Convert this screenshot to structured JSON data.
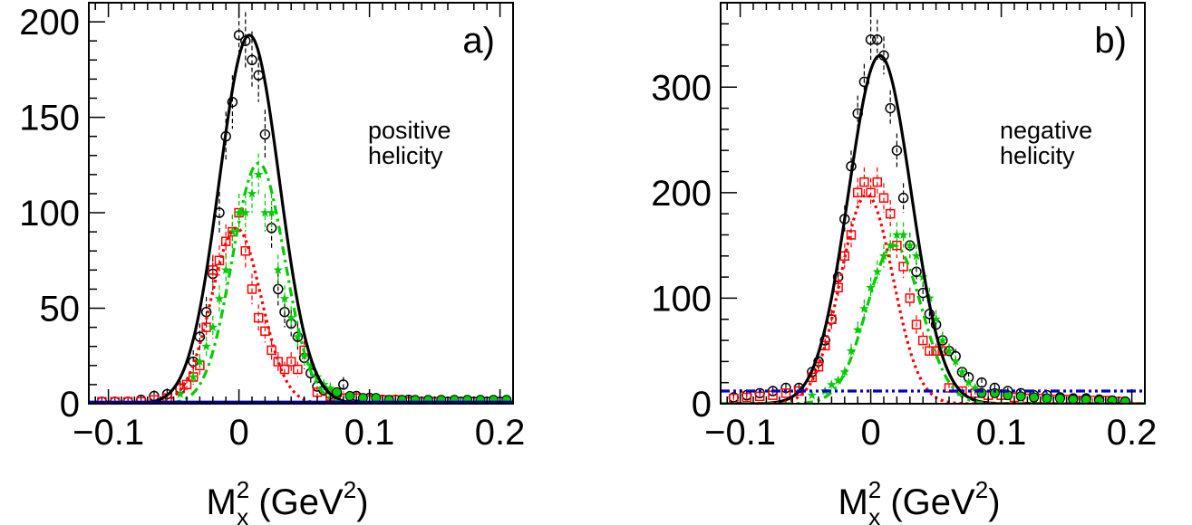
{
  "chart_data": [
    {
      "type": "scatter",
      "panel_label": "a)",
      "annotation": [
        "positive",
        "helicity"
      ],
      "x_axis": {
        "label_main": "M",
        "label_sup": "2",
        "label_sub": "x",
        "label_unit_open": " (GeV",
        "label_unit_sup": "2",
        "label_unit_close": ")",
        "range": [
          -0.115,
          0.21
        ],
        "ticks": [
          -0.1,
          0,
          0.1,
          0.2
        ],
        "tick_labels": [
          "−0.1",
          "0",
          "0.1",
          "0.2"
        ]
      },
      "y_axis": {
        "range": [
          0,
          210
        ],
        "ticks": [
          0,
          50,
          100,
          150,
          200
        ],
        "tick_labels": [
          "0",
          "50",
          "100",
          "150",
          "200"
        ]
      },
      "grid": false,
      "series": [
        {
          "kind": "points",
          "marker": "circle",
          "color": "#000000",
          "x": [
            -0.105,
            -0.095,
            -0.085,
            -0.075,
            -0.065,
            -0.055,
            -0.045,
            -0.035,
            -0.03,
            -0.025,
            -0.02,
            -0.015,
            -0.01,
            -0.005,
            0,
            0.005,
            0.01,
            0.015,
            0.02,
            0.025,
            0.03,
            0.035,
            0.04,
            0.045,
            0.05,
            0.055,
            0.06,
            0.065,
            0.07,
            0.075,
            0.08,
            0.09,
            0.1,
            0.11,
            0.12,
            0.13,
            0.14,
            0.15,
            0.16,
            0.17,
            0.18,
            0.19,
            0.2
          ],
          "y": [
            1,
            1,
            1,
            2,
            4,
            5,
            8,
            22,
            35,
            48,
            68,
            100,
            140,
            158,
            193,
            190,
            180,
            172,
            141,
            92,
            60,
            48,
            42,
            35,
            24,
            16,
            9,
            7,
            5,
            5,
            10,
            4,
            3,
            2,
            2,
            2,
            1,
            1,
            1,
            1,
            1,
            1,
            1
          ],
          "err": [
            2,
            2,
            2,
            2,
            3,
            3,
            4,
            6,
            7,
            8,
            9,
            11,
            13,
            14,
            15,
            15,
            15,
            14,
            13,
            11,
            9,
            8,
            7,
            7,
            6,
            5,
            4,
            3,
            3,
            3,
            4,
            2,
            2,
            2,
            2,
            2,
            2,
            2,
            2,
            2,
            2,
            2,
            2
          ]
        },
        {
          "kind": "points",
          "marker": "square",
          "color": "#ff0000",
          "x": [
            -0.105,
            -0.095,
            -0.085,
            -0.075,
            -0.065,
            -0.055,
            -0.045,
            -0.04,
            -0.035,
            -0.03,
            -0.025,
            -0.02,
            -0.015,
            -0.01,
            -0.005,
            0,
            0.005,
            0.01,
            0.015,
            0.02,
            0.025,
            0.03,
            0.035,
            0.04,
            0.045,
            0.05,
            0.06,
            0.07,
            0.08,
            0.09,
            0.1,
            0.11,
            0.12,
            0.13,
            0.14,
            0.15
          ],
          "y": [
            1,
            1,
            1,
            1,
            2,
            3,
            8,
            10,
            14,
            20,
            40,
            70,
            75,
            85,
            90,
            100,
            80,
            60,
            45,
            38,
            28,
            22,
            18,
            22,
            18,
            28,
            6,
            4,
            3,
            3,
            2,
            2,
            2,
            1,
            1,
            1
          ],
          "err": [
            1,
            1,
            1,
            1,
            2,
            2,
            3,
            3,
            4,
            5,
            6,
            8,
            8,
            9,
            9,
            10,
            9,
            8,
            7,
            6,
            5,
            5,
            4,
            5,
            4,
            5,
            3,
            2,
            2,
            2,
            2,
            2,
            2,
            2,
            2,
            2
          ]
        },
        {
          "kind": "points",
          "marker": "star",
          "color": "#00cc00",
          "x": [
            -0.045,
            -0.035,
            -0.03,
            -0.025,
            -0.02,
            -0.015,
            -0.01,
            -0.005,
            0,
            0.005,
            0.01,
            0.015,
            0.02,
            0.025,
            0.03,
            0.035,
            0.04,
            0.045,
            0.05,
            0.055,
            0.06,
            0.065,
            0.07
          ],
          "y": [
            5,
            14,
            22,
            30,
            40,
            55,
            70,
            90,
            100,
            100,
            110,
            120,
            100,
            100,
            70,
            55,
            45,
            35,
            25,
            20,
            14,
            10,
            8
          ],
          "err": [
            2,
            3,
            4,
            5,
            6,
            7,
            8,
            9,
            10,
            10,
            10,
            11,
            10,
            10,
            8,
            7,
            6,
            5,
            5,
            4,
            3,
            3,
            3
          ]
        },
        {
          "kind": "points",
          "marker": "circle-filled",
          "color": "#00cc00",
          "x": [
            0.075,
            0.085,
            0.095,
            0.105,
            0.115,
            0.125,
            0.135,
            0.145,
            0.155,
            0.165,
            0.175,
            0.185,
            0.195,
            0.205
          ],
          "y": [
            6,
            4,
            3,
            3,
            2,
            2,
            2,
            2,
            2,
            2,
            2,
            2,
            2,
            2
          ],
          "err": [
            2,
            2,
            2,
            2,
            1,
            1,
            1,
            1,
            1,
            1,
            1,
            1,
            1,
            1
          ]
        },
        {
          "kind": "curve",
          "style": "solid",
          "color": "#000000",
          "amplitude": 193,
          "mean": 0.008,
          "sigma": 0.023,
          "baseline": 0
        },
        {
          "kind": "curve",
          "style": "dotted",
          "color": "#ff0000",
          "amplitude": 92,
          "mean": -0.002,
          "sigma": 0.019,
          "baseline": 0
        },
        {
          "kind": "curve",
          "style": "dashdot",
          "color": "#00cc00",
          "amplitude": 126,
          "mean": 0.015,
          "sigma": 0.02,
          "baseline": 0
        },
        {
          "kind": "curve",
          "style": "solid",
          "color": "#0000aa",
          "amplitude": 0,
          "mean": 0,
          "sigma": 1,
          "baseline": 1
        }
      ]
    },
    {
      "type": "scatter",
      "panel_label": "b)",
      "annotation": [
        "negative",
        "helicity"
      ],
      "x_axis": {
        "label_main": "M",
        "label_sup": "2",
        "label_sub": "x",
        "label_unit_open": " (GeV",
        "label_unit_sup": "2",
        "label_unit_close": ")",
        "range": [
          -0.115,
          0.21
        ],
        "ticks": [
          -0.1,
          0,
          0.1,
          0.2
        ],
        "tick_labels": [
          "−0.1",
          "0",
          "0.1",
          "0.2"
        ]
      },
      "y_axis": {
        "range": [
          0,
          380
        ],
        "ticks": [
          0,
          100,
          200,
          300
        ],
        "tick_labels": [
          "0",
          "100",
          "200",
          "300"
        ]
      },
      "grid": false,
      "series": [
        {
          "kind": "points",
          "marker": "circle",
          "color": "#000000",
          "x": [
            -0.105,
            -0.095,
            -0.085,
            -0.075,
            -0.065,
            -0.055,
            -0.045,
            -0.04,
            -0.035,
            -0.03,
            -0.025,
            -0.02,
            -0.015,
            -0.01,
            -0.005,
            0,
            0.005,
            0.01,
            0.015,
            0.02,
            0.025,
            0.03,
            0.035,
            0.04,
            0.045,
            0.05,
            0.055,
            0.06,
            0.065,
            0.07,
            0.075,
            0.085,
            0.095,
            0.105,
            0.115,
            0.125,
            0.135,
            0.145,
            0.155,
            0.165,
            0.175,
            0.185,
            0.195
          ],
          "y": [
            6,
            8,
            10,
            12,
            15,
            15,
            30,
            40,
            60,
            80,
            120,
            175,
            225,
            275,
            305,
            345,
            345,
            330,
            280,
            240,
            195,
            150,
            125,
            105,
            85,
            75,
            60,
            50,
            45,
            30,
            25,
            20,
            15,
            12,
            10,
            8,
            8,
            6,
            5,
            5,
            4,
            3,
            2
          ],
          "err": [
            3,
            3,
            3,
            4,
            4,
            4,
            5,
            6,
            8,
            9,
            11,
            13,
            15,
            17,
            17,
            19,
            19,
            18,
            17,
            16,
            14,
            12,
            11,
            10,
            9,
            9,
            8,
            7,
            7,
            5,
            5,
            4,
            4,
            3,
            3,
            3,
            3,
            2,
            2,
            2,
            2,
            2,
            2
          ]
        },
        {
          "kind": "points",
          "marker": "square",
          "color": "#ff0000",
          "x": [
            -0.105,
            -0.095,
            -0.085,
            -0.075,
            -0.065,
            -0.055,
            -0.045,
            -0.04,
            -0.035,
            -0.03,
            -0.025,
            -0.02,
            -0.015,
            -0.01,
            -0.005,
            0,
            0.005,
            0.01,
            0.015,
            0.02,
            0.025,
            0.03,
            0.035,
            0.04,
            0.045,
            0.05,
            0.055,
            0.06,
            0.07,
            0.08,
            0.09,
            0.1,
            0.11,
            0.12,
            0.13,
            0.14,
            0.15,
            0.16,
            0.17,
            0.18,
            0.19
          ],
          "y": [
            5,
            6,
            7,
            8,
            10,
            12,
            25,
            35,
            55,
            80,
            110,
            140,
            160,
            200,
            210,
            200,
            210,
            195,
            180,
            150,
            130,
            100,
            75,
            60,
            50,
            50,
            50,
            15,
            12,
            10,
            8,
            8,
            6,
            5,
            5,
            4,
            4,
            3,
            3,
            3,
            2
          ],
          "err": [
            2,
            2,
            3,
            3,
            3,
            3,
            5,
            6,
            7,
            9,
            10,
            12,
            13,
            14,
            14,
            14,
            14,
            14,
            13,
            12,
            11,
            10,
            9,
            8,
            7,
            7,
            7,
            4,
            3,
            3,
            3,
            3,
            2,
            2,
            2,
            2,
            2,
            2,
            2,
            2,
            2
          ]
        },
        {
          "kind": "points",
          "marker": "star",
          "color": "#00cc00",
          "x": [
            -0.045,
            -0.035,
            -0.03,
            -0.025,
            -0.02,
            -0.015,
            -0.01,
            -0.005,
            0,
            0.005,
            0.01,
            0.015,
            0.02,
            0.025,
            0.03,
            0.035,
            0.04,
            0.045,
            0.05,
            0.055,
            0.06,
            0.065,
            0.07,
            0.075,
            0.08
          ],
          "y": [
            8,
            12,
            18,
            22,
            30,
            50,
            70,
            90,
            110,
            125,
            140,
            150,
            160,
            160,
            150,
            140,
            120,
            100,
            80,
            60,
            50,
            40,
            30,
            20,
            15
          ],
          "err": [
            3,
            3,
            4,
            4,
            5,
            7,
            8,
            9,
            10,
            11,
            11,
            12,
            12,
            12,
            12,
            11,
            10,
            10,
            9,
            8,
            7,
            6,
            5,
            4,
            4
          ]
        },
        {
          "kind": "points",
          "marker": "circle-filled",
          "color": "#00cc00",
          "x": [
            0.085,
            0.095,
            0.105,
            0.115,
            0.125,
            0.135,
            0.145,
            0.155,
            0.165,
            0.175,
            0.185,
            0.195
          ],
          "y": [
            10,
            10,
            8,
            7,
            6,
            5,
            5,
            4,
            4,
            3,
            3,
            2
          ],
          "err": [
            3,
            3,
            3,
            3,
            2,
            2,
            2,
            2,
            2,
            2,
            2,
            2
          ]
        },
        {
          "kind": "curve",
          "style": "solid",
          "color": "#000000",
          "amplitude": 330,
          "mean": 0.007,
          "sigma": 0.024,
          "baseline": 0
        },
        {
          "kind": "curve",
          "style": "dotted",
          "color": "#ff0000",
          "amplitude": 198,
          "mean": -0.003,
          "sigma": 0.02,
          "baseline": 0
        },
        {
          "kind": "curve",
          "style": "dashdot",
          "color": "#00cc00",
          "amplitude": 150,
          "mean": 0.018,
          "sigma": 0.021,
          "baseline": 0
        },
        {
          "kind": "curve",
          "style": "dashdotdot",
          "color": "#0000cc",
          "amplitude": 0,
          "mean": 0,
          "sigma": 1,
          "baseline": 12
        }
      ]
    }
  ]
}
